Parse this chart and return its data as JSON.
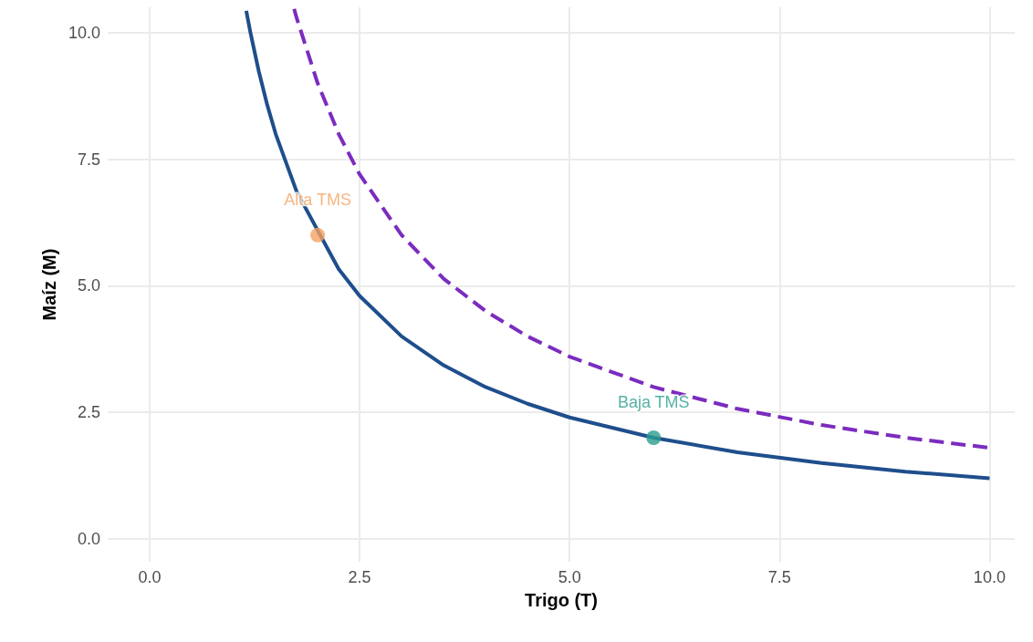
{
  "chart_data": {
    "type": "line",
    "xlabel": "Trigo (T)",
    "ylabel": "Maíz (M)",
    "xlim": [
      -0.5,
      10.3
    ],
    "ylim": [
      -0.45,
      10.5
    ],
    "xticks": [
      {
        "value": 0,
        "label": "0.0"
      },
      {
        "value": 2.5,
        "label": "2.5"
      },
      {
        "value": 5,
        "label": "5.0"
      },
      {
        "value": 7.5,
        "label": "7.5"
      },
      {
        "value": 10,
        "label": "10.0"
      }
    ],
    "yticks": [
      {
        "value": 0,
        "label": "0.0"
      },
      {
        "value": 2.5,
        "label": "2.5"
      },
      {
        "value": 5,
        "label": "5.0"
      },
      {
        "value": 7.5,
        "label": "7.5"
      },
      {
        "value": 10,
        "label": "10.0"
      }
    ],
    "grid": true,
    "legend": false,
    "series": [
      {
        "color": "#1f4e8c",
        "line_style": "solid",
        "x": [
          1.15,
          1.2,
          1.3,
          1.4,
          1.5,
          1.75,
          2.25,
          2.5,
          3,
          3.5,
          4,
          4.5,
          5,
          6,
          7,
          8,
          9,
          10
        ],
        "values": [
          10.43,
          10,
          9.23,
          8.57,
          8,
          6.86,
          5.33,
          4.8,
          4,
          3.43,
          3,
          2.67,
          2.4,
          2,
          1.71,
          1.5,
          1.33,
          1.2
        ]
      },
      {
        "color": "#7b2cbf",
        "line_style": "dashed",
        "x": [
          1.72,
          1.75,
          2,
          2.25,
          2.5,
          3,
          3.5,
          4,
          4.5,
          5,
          6,
          7,
          8,
          9,
          10
        ],
        "values": [
          10.47,
          10.29,
          9,
          8,
          7.2,
          6,
          5.14,
          4.5,
          4,
          3.6,
          3,
          2.57,
          2.25,
          2,
          1.8
        ]
      },
      {
        "type": "scatter",
        "name": "Alta TMS",
        "color": "#f4a261",
        "marker": "circle",
        "x": [
          2
        ],
        "values": [
          6
        ]
      },
      {
        "type": "scatter",
        "name": "Baja TMS",
        "color": "#2a9d8f",
        "marker": "circle",
        "x": [
          6
        ],
        "values": [
          2
        ]
      }
    ]
  }
}
